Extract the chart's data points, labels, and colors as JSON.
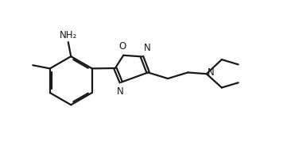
{
  "bg_color": "#ffffff",
  "line_color": "#1a1a1a",
  "text_color": "#1a1a1a",
  "lw": 1.6,
  "font_size": 8.5,
  "figsize": [
    3.66,
    1.93
  ],
  "dpi": 100,
  "xlim": [
    0,
    10.5
  ],
  "ylim": [
    0,
    5.2
  ]
}
